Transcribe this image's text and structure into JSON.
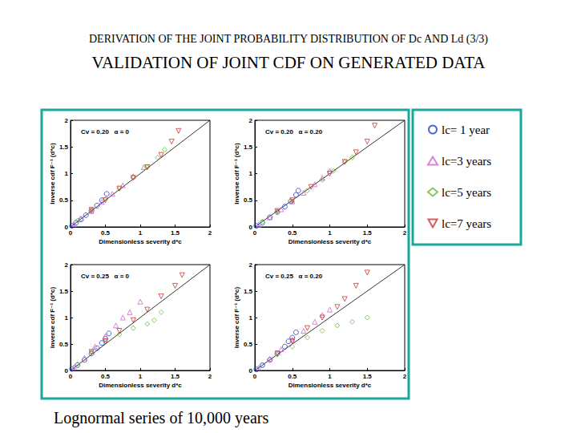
{
  "page": {
    "title": "DERIVATION OF THE JOINT PROBABILITY DISTRIBUTION OF Dc AND Ld (3/3)",
    "subtitle": "VALIDATION OF JOINT CDF ON GENERATED DATA",
    "footer": "Lognormal series of 10,000 years"
  },
  "chart_data": [
    {
      "type": "scatter",
      "title": "Cv = 0.20   α = 0",
      "xlabel": "Dimensionless severity d*c",
      "ylabel": "Inverse cdf F⁻¹ (d*c)",
      "xlim": [
        0,
        2
      ],
      "ylim": [
        0,
        2
      ],
      "xticks": [
        0,
        0.5,
        1,
        1.5,
        2
      ],
      "yticks": [
        0,
        0.5,
        1,
        1.5,
        2
      ],
      "grid": false,
      "legend": "upper right",
      "series": [
        {
          "name": "lc= 1 year",
          "color": "#2340c8",
          "marker": "circle",
          "x": [
            0.02,
            0.08,
            0.15,
            0.22,
            0.3,
            0.38,
            0.45,
            0.52
          ],
          "values": [
            0.02,
            0.08,
            0.14,
            0.22,
            0.3,
            0.4,
            0.5,
            0.62
          ]
        },
        {
          "name": "lc=3 years",
          "color": "#cc66cc",
          "marker": "triangle",
          "x": [
            0.05,
            0.15,
            0.3,
            0.45,
            0.6,
            0.75,
            0.9,
            1.05
          ],
          "values": [
            0.05,
            0.16,
            0.3,
            0.47,
            0.62,
            0.78,
            0.95,
            1.12
          ]
        },
        {
          "name": "lc=5 years",
          "color": "#66bb33",
          "marker": "diamond",
          "x": [
            0.1,
            0.3,
            0.5,
            0.7,
            0.9,
            1.1,
            1.25,
            1.35
          ],
          "values": [
            0.12,
            0.32,
            0.52,
            0.72,
            0.93,
            1.12,
            1.3,
            1.45
          ]
        },
        {
          "name": "lc=7 years",
          "color": "#cc3333",
          "marker": "triangle-down",
          "x": [
            0.3,
            0.5,
            0.7,
            0.9,
            1.1,
            1.3,
            1.45,
            1.55
          ],
          "values": [
            0.32,
            0.5,
            0.72,
            0.92,
            1.12,
            1.35,
            1.6,
            1.8
          ]
        },
        {
          "type": "line",
          "color": "#000000",
          "line_style": "solid",
          "x": [
            0,
            2
          ],
          "values": [
            0,
            2
          ]
        }
      ]
    },
    {
      "type": "scatter",
      "title": "Cv = 0.20   α = 0.20",
      "xlabel": "Dimensionless severity d*c",
      "ylabel": "Inverse cdf F⁻¹ (d*c)",
      "xlim": [
        0,
        2
      ],
      "ylim": [
        0,
        2
      ],
      "xticks": [
        0,
        0.5,
        1,
        1.5,
        2
      ],
      "yticks": [
        0,
        0.5,
        1,
        1.5,
        2
      ],
      "grid": false,
      "legend": "upper right",
      "series": [
        {
          "name": "lc= 1 year",
          "color": "#2340c8",
          "marker": "circle",
          "x": [
            0.02,
            0.1,
            0.2,
            0.3,
            0.4,
            0.48,
            0.55,
            0.58
          ],
          "values": [
            0.02,
            0.08,
            0.18,
            0.28,
            0.38,
            0.48,
            0.6,
            0.68
          ]
        },
        {
          "name": "lc=3 years",
          "color": "#cc66cc",
          "marker": "triangle",
          "x": [
            0.05,
            0.2,
            0.35,
            0.5,
            0.65,
            0.8,
            0.9,
            1.0
          ],
          "values": [
            0.04,
            0.18,
            0.33,
            0.48,
            0.64,
            0.8,
            0.92,
            1.05
          ]
        },
        {
          "name": "lc=5 years",
          "color": "#66bb33",
          "marker": "diamond",
          "x": [
            0.1,
            0.3,
            0.5,
            0.7,
            0.9,
            1.05,
            1.2,
            1.3
          ],
          "values": [
            0.1,
            0.28,
            0.48,
            0.68,
            0.88,
            1.05,
            1.22,
            1.3
          ]
        },
        {
          "name": "lc=7 years",
          "color": "#cc3333",
          "marker": "triangle-down",
          "x": [
            0.3,
            0.5,
            0.75,
            1.0,
            1.2,
            1.35,
            1.5,
            1.6
          ],
          "values": [
            0.3,
            0.5,
            0.75,
            1.0,
            1.22,
            1.4,
            1.6,
            1.9
          ]
        },
        {
          "type": "line",
          "color": "#000000",
          "line_style": "solid",
          "x": [
            0,
            2
          ],
          "values": [
            0,
            2
          ]
        }
      ]
    },
    {
      "type": "scatter",
      "title": "Cv = 0.25   α = 0",
      "xlabel": "Dimensionless severity d*c",
      "ylabel": "Inverse cdf F⁻¹ (d*c)",
      "xlim": [
        0,
        2
      ],
      "ylim": [
        0,
        2
      ],
      "xticks": [
        0,
        0.5,
        1,
        1.5,
        2
      ],
      "yticks": [
        0,
        0.5,
        1,
        1.5,
        2
      ],
      "grid": false,
      "legend": "upper right",
      "series": [
        {
          "name": "lc= 1 year",
          "color": "#2340c8",
          "marker": "circle",
          "x": [
            0.02,
            0.1,
            0.2,
            0.3,
            0.38,
            0.45,
            0.5,
            0.55
          ],
          "values": [
            0.03,
            0.1,
            0.2,
            0.32,
            0.42,
            0.52,
            0.6,
            0.7
          ]
        },
        {
          "name": "lc=3 years",
          "color": "#cc66cc",
          "marker": "triangle",
          "x": [
            0.05,
            0.2,
            0.35,
            0.5,
            0.65,
            0.75,
            0.85,
            1.0
          ],
          "values": [
            0.06,
            0.24,
            0.45,
            0.65,
            0.85,
            1.0,
            1.1,
            1.3
          ]
        },
        {
          "name": "lc=5 years",
          "color": "#66bb33",
          "marker": "diamond",
          "x": [
            0.1,
            0.3,
            0.5,
            0.7,
            0.9,
            1.1,
            1.2,
            1.3
          ],
          "values": [
            0.12,
            0.35,
            0.55,
            0.68,
            0.8,
            0.88,
            0.95,
            1.1
          ]
        },
        {
          "name": "lc=7 years",
          "color": "#cc3333",
          "marker": "triangle-down",
          "x": [
            0.3,
            0.5,
            0.7,
            0.9,
            1.1,
            1.3,
            1.5,
            1.6
          ],
          "values": [
            0.35,
            0.55,
            0.75,
            0.95,
            1.15,
            1.4,
            1.6,
            1.8
          ]
        },
        {
          "type": "line",
          "color": "#000000",
          "line_style": "solid",
          "x": [
            0,
            2
          ],
          "values": [
            0,
            2
          ]
        }
      ]
    },
    {
      "type": "scatter",
      "title": "Cv = 0.25   α = 0.20",
      "xlabel": "Dimensionless severity d*c",
      "ylabel": "Inverse cdf F⁻¹ (d*c)",
      "xlim": [
        0,
        2
      ],
      "ylim": [
        0,
        2
      ],
      "xticks": [
        0,
        0.5,
        1,
        1.5,
        2
      ],
      "yticks": [
        0,
        0.5,
        1,
        1.5,
        2
      ],
      "grid": false,
      "legend": "upper right",
      "series": [
        {
          "name": "lc= 1 year",
          "color": "#2340c8",
          "marker": "circle",
          "x": [
            0.02,
            0.1,
            0.2,
            0.3,
            0.4,
            0.45,
            0.5,
            0.55
          ],
          "values": [
            0.02,
            0.1,
            0.2,
            0.32,
            0.45,
            0.55,
            0.62,
            0.72
          ]
        },
        {
          "name": "lc=3 years",
          "color": "#cc66cc",
          "marker": "triangle",
          "x": [
            0.05,
            0.2,
            0.35,
            0.5,
            0.65,
            0.8,
            0.9,
            1.0
          ],
          "values": [
            0.05,
            0.22,
            0.4,
            0.58,
            0.75,
            0.92,
            1.05,
            1.15
          ]
        },
        {
          "name": "lc=5 years",
          "color": "#66bb33",
          "marker": "diamond",
          "x": [
            0.1,
            0.3,
            0.5,
            0.7,
            0.9,
            1.1,
            1.3,
            1.5
          ],
          "values": [
            0.1,
            0.3,
            0.45,
            0.62,
            0.75,
            0.85,
            0.92,
            1.0
          ]
        },
        {
          "name": "lc=7 years",
          "color": "#cc3333",
          "marker": "triangle-down",
          "x": [
            0.3,
            0.5,
            0.7,
            0.9,
            1.1,
            1.2,
            1.35,
            1.5
          ],
          "values": [
            0.32,
            0.55,
            0.8,
            1.0,
            1.2,
            1.35,
            1.6,
            1.85
          ]
        },
        {
          "type": "line",
          "color": "#000000",
          "line_style": "solid",
          "x": [
            0,
            2
          ],
          "values": [
            0,
            2
          ]
        }
      ]
    }
  ]
}
